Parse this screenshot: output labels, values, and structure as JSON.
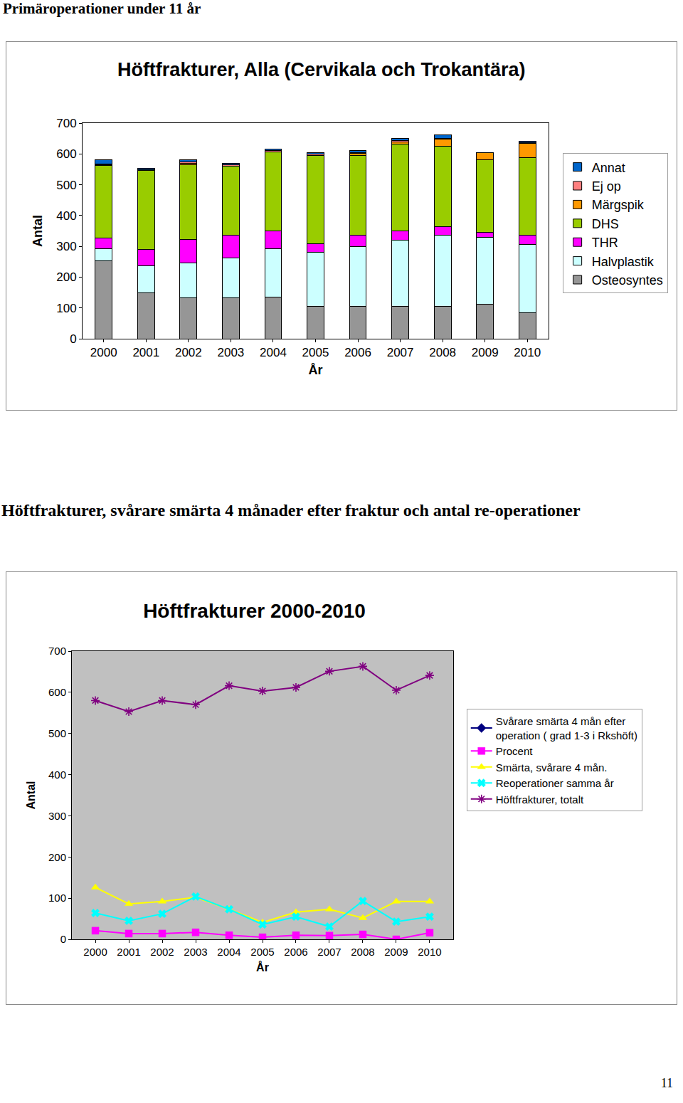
{
  "header": "Primäroperationer under 11 år",
  "section_title": "Höftfrakturer, svårare smärta 4 månader efter fraktur och antal re-operationer",
  "page_number": "11",
  "chart_data": [
    {
      "type": "bar",
      "title": "Höftfrakturer, Alla (Cervikala och Trokantära)",
      "x_label": "År",
      "y_label": "Antal",
      "stacked": true,
      "grid": false,
      "legend": "right",
      "categories": [
        "2000",
        "2001",
        "2002",
        "2003",
        "2004",
        "2005",
        "2006",
        "2007",
        "2008",
        "2009",
        "2010"
      ],
      "ylim": [
        0,
        700
      ],
      "yticks": [
        0,
        100,
        200,
        300,
        400,
        500,
        600,
        700
      ],
      "series": [
        {
          "name": "Osteosyntes",
          "color": "#969696",
          "values": [
            252,
            148,
            134,
            132,
            136,
            104,
            104,
            106,
            104,
            111,
            85
          ]
        },
        {
          "name": "Halvplastik",
          "color": "#ccffff",
          "values": [
            41,
            88,
            111,
            131,
            157,
            176,
            196,
            213,
            231,
            219,
            220
          ]
        },
        {
          "name": "THR",
          "color": "#ff00ff",
          "values": [
            35,
            55,
            78,
            74,
            56,
            29,
            35,
            32,
            30,
            16,
            30
          ]
        },
        {
          "name": "DHS",
          "color": "#99cc00",
          "values": [
            235,
            256,
            243,
            224,
            258,
            285,
            261,
            282,
            261,
            234,
            252
          ]
        },
        {
          "name": "Märgspik",
          "color": "#ff9900",
          "values": [
            2,
            0,
            3,
            0,
            0,
            2,
            5,
            5,
            21,
            25,
            48
          ]
        },
        {
          "name": "Ej op",
          "color": "#ff8080",
          "values": [
            3,
            2,
            4,
            3,
            3,
            3,
            4,
            5,
            4,
            0,
            2
          ]
        },
        {
          "name": "Annat",
          "color": "#0066cc",
          "values": [
            12,
            4,
            7,
            6,
            6,
            4,
            7,
            8,
            12,
            0,
            4
          ]
        }
      ]
    },
    {
      "type": "line",
      "title": "Höftfrakturer 2000-2010",
      "x_label": "År",
      "y_label": "Antal",
      "grid": false,
      "legend": "right",
      "categories": [
        "2000",
        "2001",
        "2002",
        "2003",
        "2004",
        "2005",
        "2006",
        "2007",
        "2008",
        "2009",
        "2010"
      ],
      "ylim": [
        0,
        700
      ],
      "yticks": [
        0,
        100,
        200,
        300,
        400,
        500,
        600,
        700
      ],
      "series": [
        {
          "name": "Svårare smärta 4 mån efter operation ( grad 1-3 i Rkshöft)",
          "color": "#000080",
          "marker": "diamond",
          "values": [
            null,
            null,
            null,
            null,
            null,
            null,
            null,
            null,
            null,
            null,
            null
          ]
        },
        {
          "name": "Procent",
          "color": "#ff00ff",
          "marker": "square",
          "values": [
            21,
            14,
            14,
            17,
            10,
            5,
            10,
            9,
            12,
            0,
            16
          ]
        },
        {
          "name": "Smärta, svårare 4 mån.",
          "color": "#ffff00",
          "marker": "triangle-up",
          "values": [
            126,
            86,
            92,
            102,
            73,
            41,
            66,
            73,
            52,
            92,
            92
          ]
        },
        {
          "name": "Reoperationer samma år",
          "color": "#00ffff",
          "marker": "x",
          "values": [
            64,
            45,
            62,
            104,
            73,
            36,
            55,
            31,
            93,
            43,
            55
          ]
        },
        {
          "name": "Höftfrakturer, totalt",
          "color": "#800080",
          "marker": "asterisk-open",
          "values": [
            580,
            553,
            580,
            570,
            616,
            603,
            612,
            651,
            663,
            605,
            641
          ]
        }
      ]
    }
  ]
}
